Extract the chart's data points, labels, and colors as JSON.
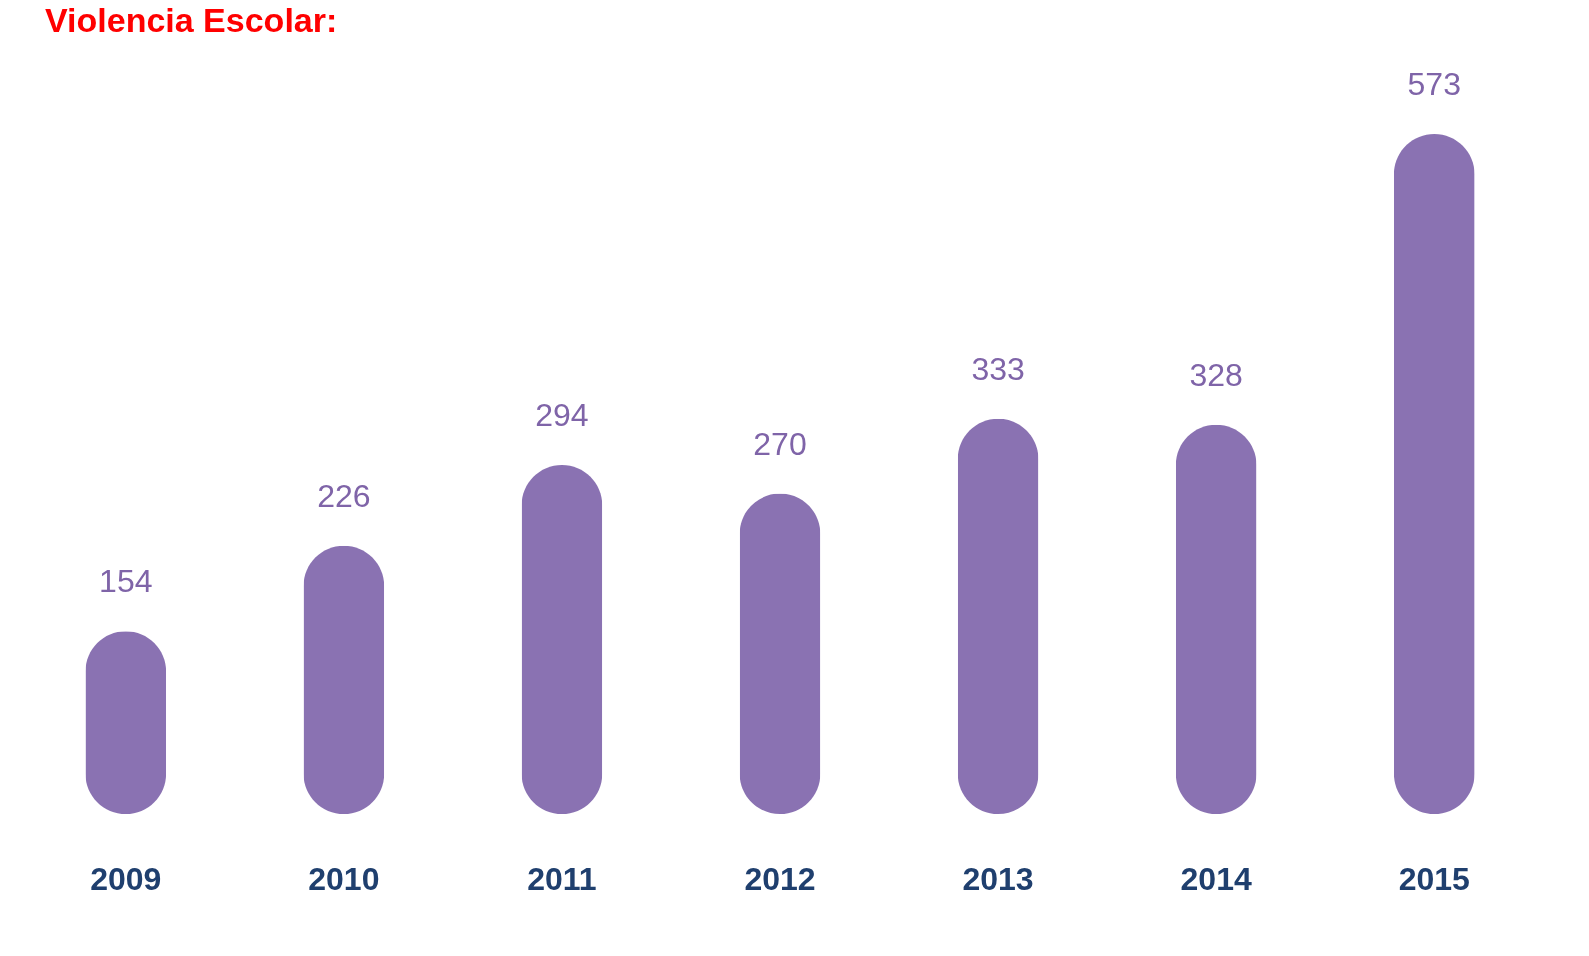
{
  "chart_data": {
    "type": "bar",
    "title": "Violencia Escolar:",
    "categories": [
      "2009",
      "2010",
      "2011",
      "2012",
      "2013",
      "2014",
      "2015"
    ],
    "values": [
      154,
      226,
      294,
      270,
      333,
      328,
      573
    ],
    "color": "#8a72b2",
    "data_labels": true
  }
}
